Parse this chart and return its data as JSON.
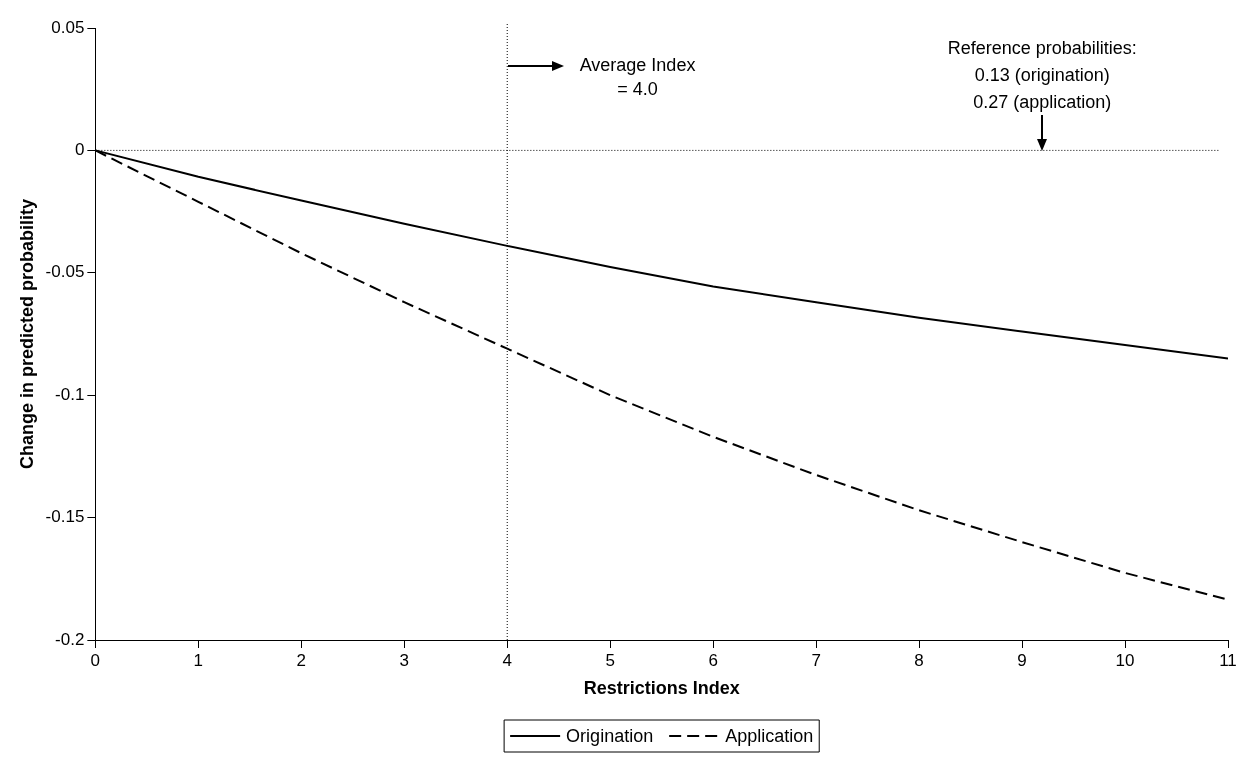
{
  "chart_data": {
    "type": "line",
    "xlabel": "Restrictions Index",
    "ylabel": "Change in predicted probability",
    "x": [
      0,
      1,
      2,
      3,
      4,
      5,
      6,
      7,
      8,
      9,
      10,
      11
    ],
    "series": [
      {
        "name": "Origination",
        "color": "#000000",
        "line_style": "solid",
        "values": [
          0,
          -0.0108,
          -0.0205,
          -0.03,
          -0.039,
          -0.0476,
          -0.0556,
          -0.062,
          -0.0684,
          -0.074,
          -0.0795,
          -0.085
        ]
      },
      {
        "name": "Application",
        "color": "#000000",
        "line_style": "dashed",
        "values": [
          0,
          -0.021,
          -0.042,
          -0.062,
          -0.081,
          -0.1,
          -0.117,
          -0.1326,
          -0.147,
          -0.16,
          -0.1726,
          -0.1835
        ]
      }
    ],
    "xlim": [
      0,
      11
    ],
    "xticks": [
      0,
      1,
      2,
      3,
      4,
      5,
      6,
      7,
      8,
      9,
      10,
      11
    ],
    "ylim": [
      -0.2,
      0.05
    ],
    "yticks": [
      -0.2,
      -0.15,
      -0.1,
      -0.05,
      0,
      0.05
    ],
    "ref_lines": [
      {
        "axis": "y",
        "value": 0,
        "line_style": "dotted"
      },
      {
        "axis": "x",
        "value": 4,
        "line_style": "dotted"
      }
    ],
    "annotations": [
      "Average Index\n= 4.0",
      "Reference probabilities:\n0.13 (origination)\n0.27 (application)"
    ],
    "marker": "none",
    "grid": false,
    "legend": "bottom"
  }
}
